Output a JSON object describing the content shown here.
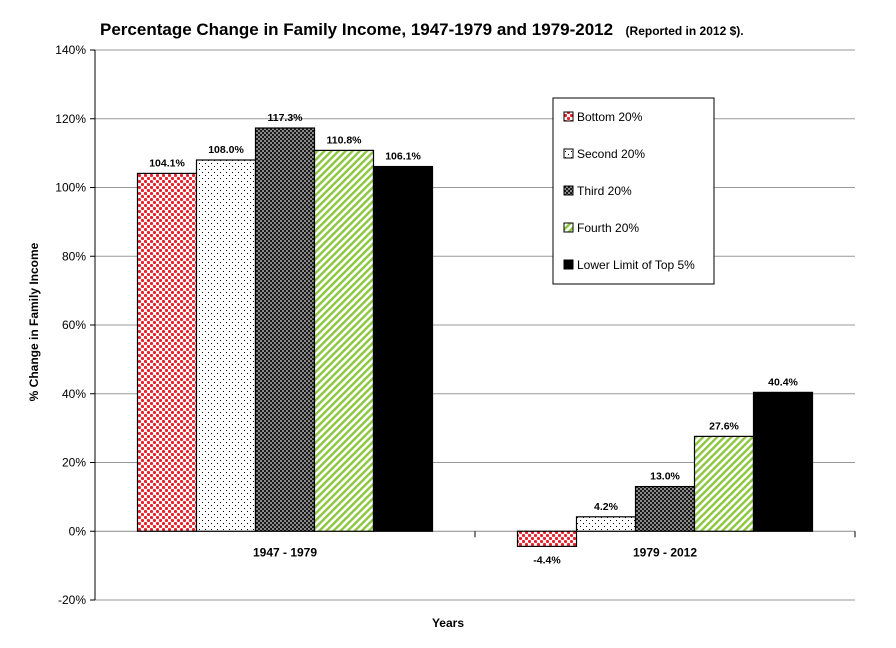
{
  "chart_data": {
    "type": "bar",
    "title": "Percentage Change in Family Income, 1947-1979 and 1979-2012",
    "subtitle": "(Reported in 2012 $).",
    "xlabel": "Years",
    "ylabel": "% Change in Family Income",
    "ylim": [
      -20,
      140
    ],
    "yticks": [
      -20,
      0,
      20,
      40,
      60,
      80,
      100,
      120,
      140
    ],
    "ytick_labels": [
      "-20%",
      "0%",
      "20%",
      "40%",
      "60%",
      "80%",
      "100%",
      "120%",
      "140%"
    ],
    "grid": true,
    "legend_position": "top-right",
    "categories": [
      "1947 - 1979",
      "1979 - 2012"
    ],
    "series": [
      {
        "name": "Bottom 20%",
        "values": [
          104.1,
          -4.4
        ],
        "labels": [
          "104.1%",
          "-4.4%"
        ],
        "pattern": "red-dots",
        "color": "#e8202a"
      },
      {
        "name": "Second 20%",
        "values": [
          108.0,
          4.2
        ],
        "labels": [
          "108.0%",
          "4.2%"
        ],
        "pattern": "sparse-dots",
        "color": "#000000"
      },
      {
        "name": "Third 20%",
        "values": [
          117.3,
          13.0
        ],
        "labels": [
          "117.3%",
          "13.0%"
        ],
        "pattern": "dark-checker",
        "color": "#3a3a3a"
      },
      {
        "name": "Fourth 20%",
        "values": [
          110.8,
          27.6
        ],
        "labels": [
          "110.8%",
          "27.6%"
        ],
        "pattern": "green-diagonal",
        "color": "#8cc63f"
      },
      {
        "name": "Lower Limit of Top 5%",
        "values": [
          106.1,
          40.4
        ],
        "labels": [
          "106.1%",
          "40.4%"
        ],
        "pattern": "solid-black",
        "color": "#000000"
      }
    ]
  }
}
